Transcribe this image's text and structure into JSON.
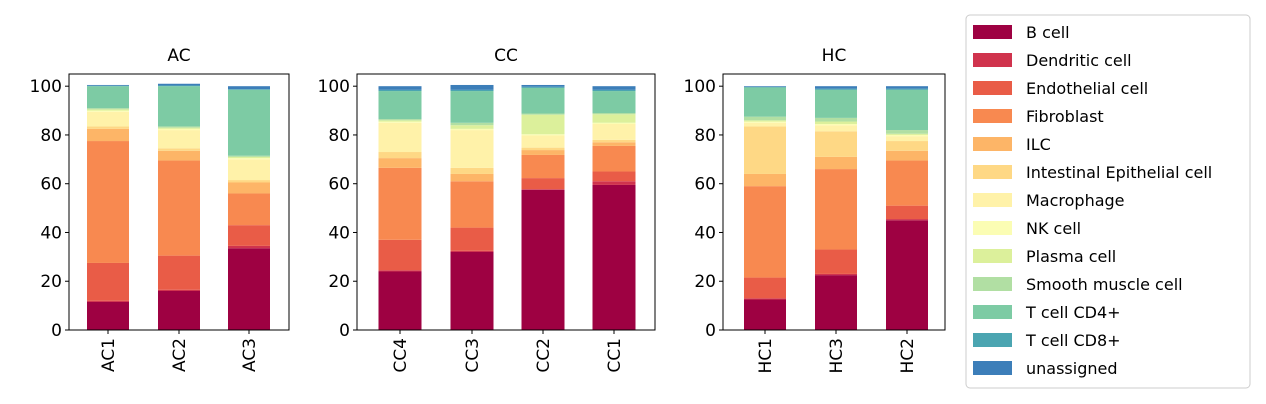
{
  "chart_data": [
    {
      "type": "bar",
      "stacked": true,
      "title": "AC",
      "categories": [
        "AC1",
        "AC2",
        "AC3"
      ],
      "ylim": [
        0,
        105
      ],
      "yticks": [
        0,
        20,
        40,
        60,
        80,
        100
      ],
      "series": [
        {
          "name": "B cell",
          "values": [
            11.5,
            16,
            33.5
          ]
        },
        {
          "name": "Dendritic cell",
          "values": [
            0.5,
            0.5,
            1
          ]
        },
        {
          "name": "Endothelial cell",
          "values": [
            15.5,
            14,
            8.5
          ]
        },
        {
          "name": "Fibroblast",
          "values": [
            50,
            39,
            13
          ]
        },
        {
          "name": "ILC",
          "values": [
            5,
            4,
            4.5
          ]
        },
        {
          "name": "Intestinal Epithelial cell",
          "values": [
            1,
            1,
            1
          ]
        },
        {
          "name": "Macrophage",
          "values": [
            6,
            7.5,
            8.5
          ]
        },
        {
          "name": "NK cell",
          "values": [
            0.5,
            0.5,
            0.5
          ]
        },
        {
          "name": "Plasma cell",
          "values": [
            0.5,
            0.5,
            0.5
          ]
        },
        {
          "name": "Smooth muscle cell",
          "values": [
            0.5,
            0.5,
            0.5
          ]
        },
        {
          "name": "T cell CD4+",
          "values": [
            9,
            16.5,
            27
          ]
        },
        {
          "name": "T cell CD8+",
          "values": [
            0.2,
            0.3,
            0.3
          ]
        },
        {
          "name": "unassigned",
          "values": [
            0.3,
            0.7,
            1.2
          ]
        }
      ]
    },
    {
      "type": "bar",
      "stacked": true,
      "title": "CC",
      "categories": [
        "CC4",
        "CC3",
        "CC2",
        "CC1"
      ],
      "ylim": [
        0,
        105
      ],
      "yticks": [
        0,
        20,
        40,
        60,
        80,
        100
      ],
      "series": [
        {
          "name": "B cell",
          "values": [
            24,
            32,
            57.5,
            59.5
          ]
        },
        {
          "name": "Dendritic cell",
          "values": [
            0.5,
            0.5,
            0.3,
            1.5
          ]
        },
        {
          "name": "Endothelial cell",
          "values": [
            12.5,
            9.5,
            4.5,
            4
          ]
        },
        {
          "name": "Fibroblast",
          "values": [
            29.5,
            19,
            9.5,
            10.5
          ]
        },
        {
          "name": "ILC",
          "values": [
            4,
            3,
            2,
            1.5
          ]
        },
        {
          "name": "Intestinal Epithelial cell",
          "values": [
            2.5,
            2.5,
            1,
            1
          ]
        },
        {
          "name": "Macrophage",
          "values": [
            12,
            15.5,
            5,
            6.5
          ]
        },
        {
          "name": "NK cell",
          "values": [
            0.5,
            0.5,
            0.5,
            0.5
          ]
        },
        {
          "name": "Plasma cell",
          "values": [
            0.5,
            1.5,
            8,
            3.5
          ]
        },
        {
          "name": "Smooth muscle cell",
          "values": [
            0.5,
            1,
            0.5,
            0.5
          ]
        },
        {
          "name": "T cell CD4+",
          "values": [
            11.5,
            13,
            10.5,
            9
          ]
        },
        {
          "name": "T cell CD8+",
          "values": [
            0.5,
            0.5,
            0.5,
            0.5
          ]
        },
        {
          "name": "unassigned",
          "values": [
            1.5,
            2,
            0.7,
            1.5
          ]
        }
      ]
    },
    {
      "type": "bar",
      "stacked": true,
      "title": "HC",
      "categories": [
        "HC1",
        "HC3",
        "HC2"
      ],
      "ylim": [
        0,
        105
      ],
      "yticks": [
        0,
        20,
        40,
        60,
        80,
        100
      ],
      "series": [
        {
          "name": "B cell",
          "values": [
            12.5,
            22.5,
            45
          ]
        },
        {
          "name": "Dendritic cell",
          "values": [
            0.5,
            0.5,
            0.5
          ]
        },
        {
          "name": "Endothelial cell",
          "values": [
            8.5,
            10,
            5.5
          ]
        },
        {
          "name": "Fibroblast",
          "values": [
            37.5,
            33,
            18.5
          ]
        },
        {
          "name": "ILC",
          "values": [
            5,
            5,
            4
          ]
        },
        {
          "name": "Intestinal Epithelial cell",
          "values": [
            19.5,
            10.5,
            4
          ]
        },
        {
          "name": "Macrophage",
          "values": [
            1.5,
            2.5,
            2
          ]
        },
        {
          "name": "NK cell",
          "values": [
            0.5,
            0.5,
            0.5
          ]
        },
        {
          "name": "Plasma cell",
          "values": [
            0.5,
            1,
            0.5
          ]
        },
        {
          "name": "Smooth muscle cell",
          "values": [
            1.5,
            1.5,
            1.5
          ]
        },
        {
          "name": "T cell CD4+",
          "values": [
            12,
            11.5,
            16.5
          ]
        },
        {
          "name": "T cell CD8+",
          "values": [
            0.2,
            0.5,
            0.5
          ]
        },
        {
          "name": "unassigned",
          "values": [
            0.3,
            1,
            1
          ]
        }
      ]
    }
  ],
  "legend": {
    "placement": "right",
    "entries": [
      {
        "label": "B cell",
        "color": "#9e0142"
      },
      {
        "label": "Dendritic cell",
        "color": "#d0334d"
      },
      {
        "label": "Endothelial cell",
        "color": "#e95c47"
      },
      {
        "label": "Fibroblast",
        "color": "#f88950"
      },
      {
        "label": "ILC",
        "color": "#fdb567"
      },
      {
        "label": "Intestinal Epithelial cell",
        "color": "#fed885"
      },
      {
        "label": "Macrophage",
        "color": "#fff2a9"
      },
      {
        "label": "NK cell",
        "color": "#fbfdb4"
      },
      {
        "label": "Plasma cell",
        "color": "#dcf09b"
      },
      {
        "label": "Smooth muscle cell",
        "color": "#b1dfa3"
      },
      {
        "label": "T cell CD4+",
        "color": "#7dcba4"
      },
      {
        "label": "T cell CD8+",
        "color": "#4ba5b1"
      },
      {
        "label": "unassigned",
        "color": "#3c7eb9"
      }
    ]
  }
}
